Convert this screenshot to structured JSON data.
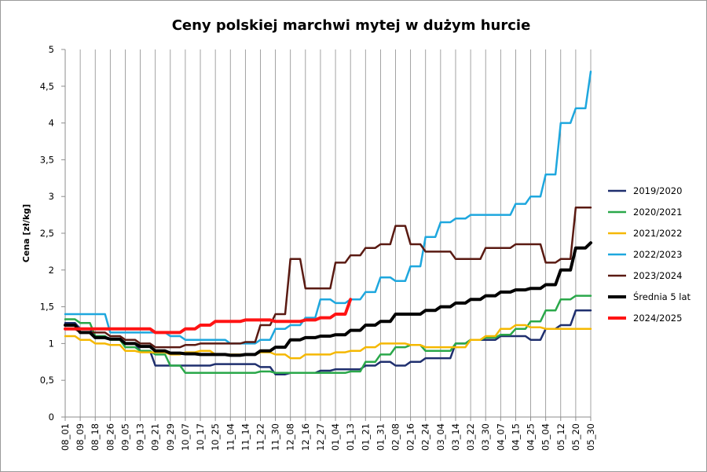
{
  "chart_data": {
    "type": "line",
    "title": "Ceny polskiej marchwi mytej w dużym hurcie",
    "xlabel": "",
    "ylabel": "Cena [zł/kg]",
    "ylim": [
      0,
      5
    ],
    "yticks": [
      "0",
      "0,5",
      "1",
      "1,5",
      "2",
      "2,5",
      "3",
      "3,5",
      "4",
      "4,5",
      "5"
    ],
    "grid": "vertical",
    "legend_position": "right",
    "categories": [
      "08_01",
      "08_09",
      "08_18",
      "08_26",
      "09_05",
      "09_13",
      "09_21",
      "09_29",
      "10_07",
      "10_17",
      "10_25",
      "11_04",
      "11_14",
      "11_22",
      "11_30",
      "12_08",
      "12_16",
      "12_27",
      "01_04",
      "01_13",
      "01_21",
      "01_31",
      "02_08",
      "02_16",
      "02_24",
      "03_04",
      "03_14",
      "03_22",
      "03_30",
      "04_07",
      "04_15",
      "04_25",
      "05_04",
      "05_12",
      "05_20",
      "05_30"
    ],
    "series": [
      {
        "name": "2019/2020",
        "color": "#1f2f6e",
        "width": 2.5,
        "values": [
          1.28,
          1.2,
          1.1,
          1.05,
          1.0,
          0.9,
          0.7,
          0.7,
          0.7,
          0.7,
          0.72,
          0.72,
          0.72,
          0.68,
          0.58,
          0.6,
          0.6,
          0.63,
          0.65,
          0.65,
          0.7,
          0.75,
          0.7,
          0.75,
          0.8,
          0.8,
          1.0,
          1.05,
          1.05,
          1.1,
          1.1,
          1.05,
          1.2,
          1.25,
          1.45,
          1.45
        ]
      },
      {
        "name": "2020/2021",
        "color": "#2aa84a",
        "width": 2.5,
        "values": [
          1.33,
          1.28,
          1.1,
          1.05,
          0.95,
          0.9,
          0.85,
          0.7,
          0.6,
          0.6,
          0.6,
          0.6,
          0.6,
          0.62,
          0.6,
          0.6,
          0.6,
          0.6,
          0.6,
          0.62,
          0.75,
          0.85,
          0.95,
          0.98,
          0.9,
          0.9,
          1.0,
          1.05,
          1.08,
          1.12,
          1.2,
          1.3,
          1.45,
          1.6,
          1.65,
          1.65
        ]
      },
      {
        "name": "2021/2022",
        "color": "#f5b800",
        "width": 2.5,
        "values": [
          1.1,
          1.05,
          1.0,
          0.98,
          0.9,
          0.88,
          0.88,
          0.85,
          0.88,
          0.9,
          0.85,
          0.85,
          0.85,
          0.88,
          0.85,
          0.8,
          0.85,
          0.85,
          0.88,
          0.9,
          0.95,
          1.0,
          1.0,
          0.98,
          0.95,
          0.95,
          0.95,
          1.05,
          1.1,
          1.2,
          1.25,
          1.22,
          1.2,
          1.2,
          1.2,
          1.2
        ]
      },
      {
        "name": "2022/2023",
        "color": "#1ea7de",
        "width": 2.5,
        "values": [
          1.4,
          1.4,
          1.4,
          1.15,
          1.15,
          1.15,
          1.15,
          1.1,
          1.05,
          1.05,
          1.05,
          1.0,
          1.0,
          1.05,
          1.2,
          1.25,
          1.35,
          1.6,
          1.55,
          1.6,
          1.7,
          1.9,
          1.85,
          2.05,
          2.45,
          2.65,
          2.7,
          2.75,
          2.75,
          2.75,
          2.9,
          3.0,
          3.3,
          4.0,
          4.2,
          4.7
        ]
      },
      {
        "name": "2023/2024",
        "color": "#5a1a12",
        "width": 2.5,
        "values": [
          1.2,
          1.15,
          1.15,
          1.1,
          1.05,
          1.0,
          0.95,
          0.95,
          0.98,
          1.0,
          1.0,
          1.0,
          1.02,
          1.25,
          1.4,
          2.15,
          1.75,
          1.75,
          2.1,
          2.2,
          2.3,
          2.35,
          2.6,
          2.35,
          2.25,
          2.25,
          2.15,
          2.15,
          2.3,
          2.3,
          2.35,
          2.35,
          2.1,
          2.15,
          2.85,
          2.85
        ]
      },
      {
        "name": "Średnia 5 lat",
        "color": "#000000",
        "width": 4,
        "values": [
          1.25,
          1.15,
          1.08,
          1.06,
          1.0,
          0.96,
          0.9,
          0.87,
          0.86,
          0.85,
          0.85,
          0.84,
          0.85,
          0.9,
          0.95,
          1.05,
          1.08,
          1.1,
          1.12,
          1.18,
          1.25,
          1.3,
          1.4,
          1.4,
          1.45,
          1.5,
          1.55,
          1.6,
          1.65,
          1.7,
          1.73,
          1.75,
          1.8,
          2.0,
          2.3,
          2.37
        ]
      },
      {
        "name": "2024/2025",
        "color": "#ff1414",
        "width": 4,
        "values": [
          1.2,
          1.2,
          1.2,
          1.2,
          1.2,
          1.2,
          1.15,
          1.15,
          1.2,
          1.25,
          1.3,
          1.3,
          1.32,
          1.32,
          1.3,
          1.3,
          1.32,
          1.35,
          1.4,
          1.6,
          null,
          null,
          null,
          null,
          null,
          null,
          null,
          null,
          null,
          null,
          null,
          null,
          null,
          null,
          null,
          null
        ]
      }
    ]
  }
}
